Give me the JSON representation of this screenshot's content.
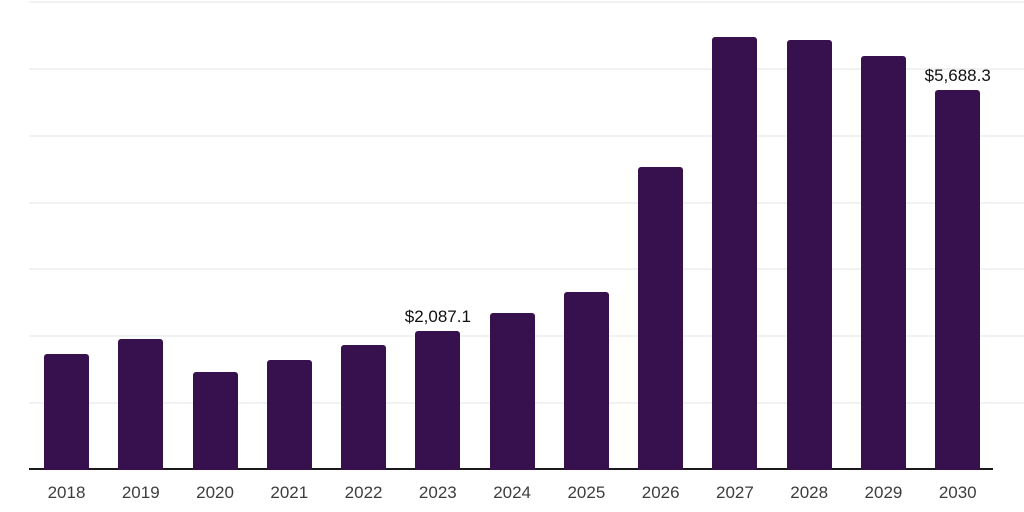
{
  "chart_data": {
    "type": "bar",
    "title": "",
    "xlabel": "",
    "ylabel": "",
    "categories": [
      "2018",
      "2019",
      "2020",
      "2021",
      "2022",
      "2023",
      "2024",
      "2025",
      "2026",
      "2027",
      "2028",
      "2029",
      "2030"
    ],
    "values": [
      1735,
      1955,
      1470,
      1645,
      1870,
      2087.1,
      2345,
      2660,
      4540,
      6475,
      6430,
      6190,
      5688.3
    ],
    "ylim": [
      0,
      7000
    ],
    "gridline_step": 1000,
    "grid": true,
    "legend": "none",
    "y_axis_tick_labels_visible": false,
    "annotations": [
      {
        "category": "2023",
        "text": "$2,087.1"
      },
      {
        "category": "2030",
        "text": "$5,688.3"
      }
    ],
    "colors": {
      "bar": "#36114d",
      "grid": "#f2f2f2",
      "axis": "#1a1a1a",
      "tick_label": "#3d3d3d",
      "annotation": "#111111",
      "background": "#ffffff"
    }
  }
}
